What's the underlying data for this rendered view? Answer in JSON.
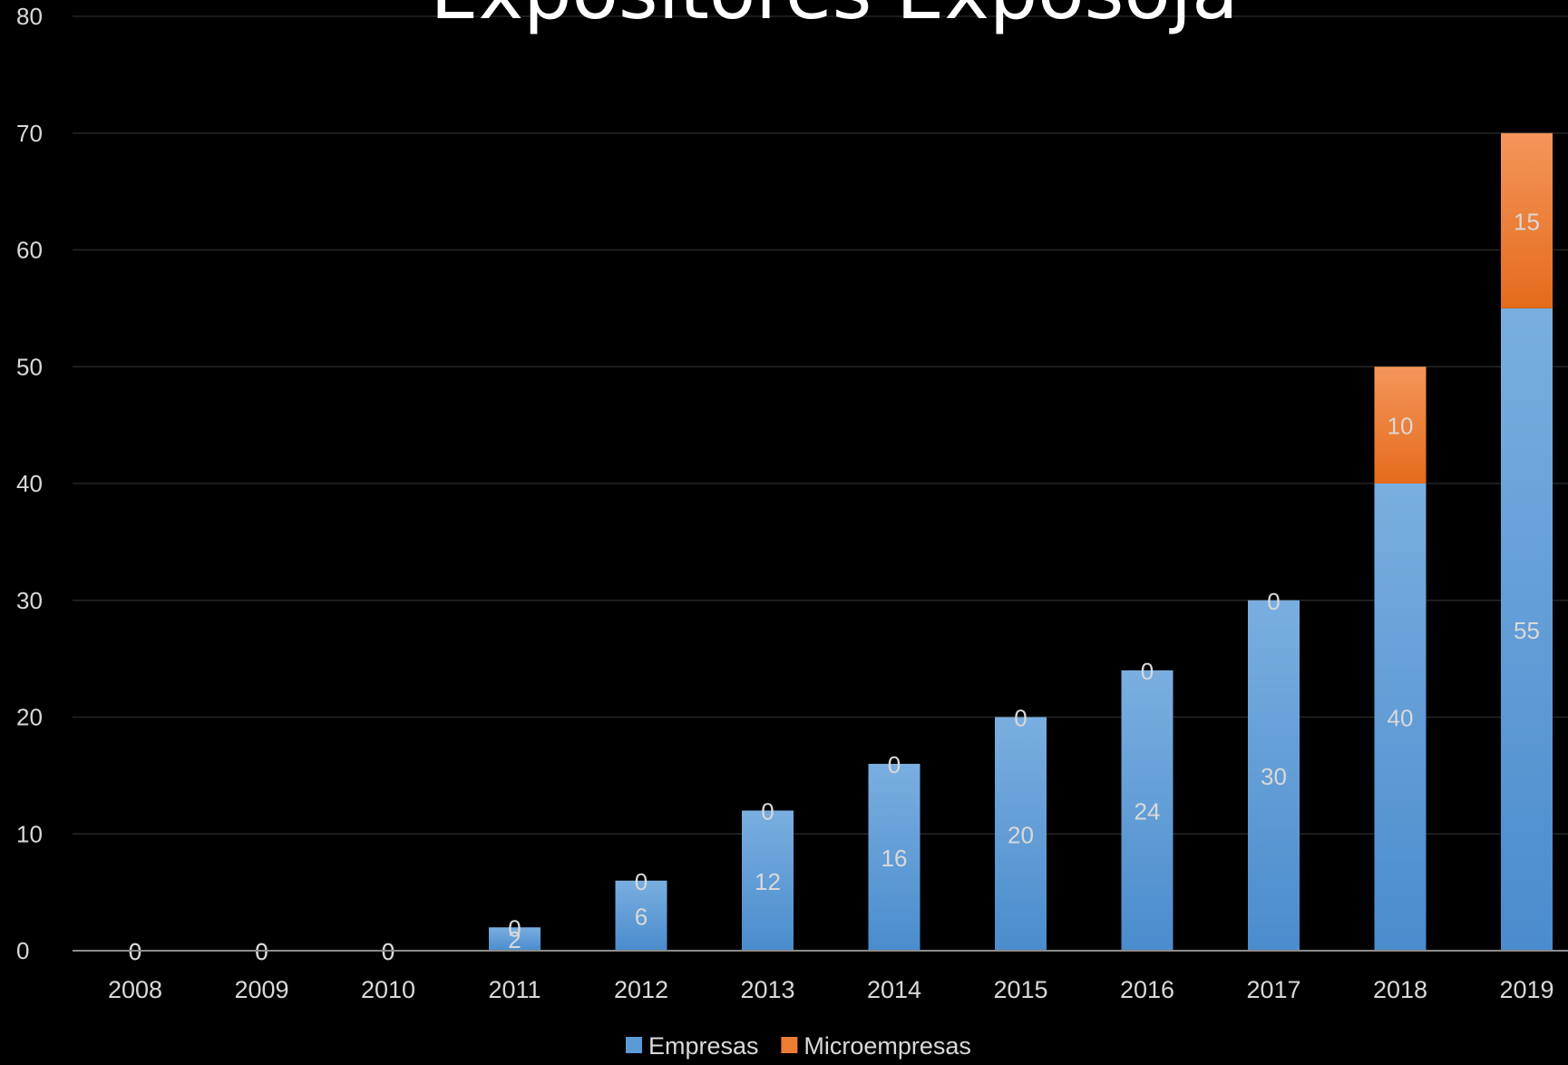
{
  "chart_data": {
    "type": "bar",
    "stacked": true,
    "title": "Expositores Exposoja",
    "xlabel": "",
    "ylabel": "",
    "categories": [
      "2008",
      "2009",
      "2010",
      "2011",
      "2012",
      "2013",
      "2014",
      "2015",
      "2016",
      "2017",
      "2018",
      "2019"
    ],
    "series": [
      {
        "name": "Empresas",
        "color": "#5b9bd5",
        "values": [
          0,
          0,
          0,
          2,
          6,
          12,
          16,
          20,
          24,
          30,
          40,
          55
        ]
      },
      {
        "name": "Microempresas",
        "color": "#ed7d31",
        "values": [
          0,
          0,
          0,
          0,
          0,
          0,
          0,
          0,
          0,
          0,
          10,
          15
        ]
      }
    ],
    "ylim": [
      0,
      80
    ],
    "yticks": [
      0,
      10,
      20,
      30,
      40,
      50,
      60,
      70,
      80
    ],
    "grid": true,
    "legend_position": "bottom",
    "data_labels": true
  }
}
